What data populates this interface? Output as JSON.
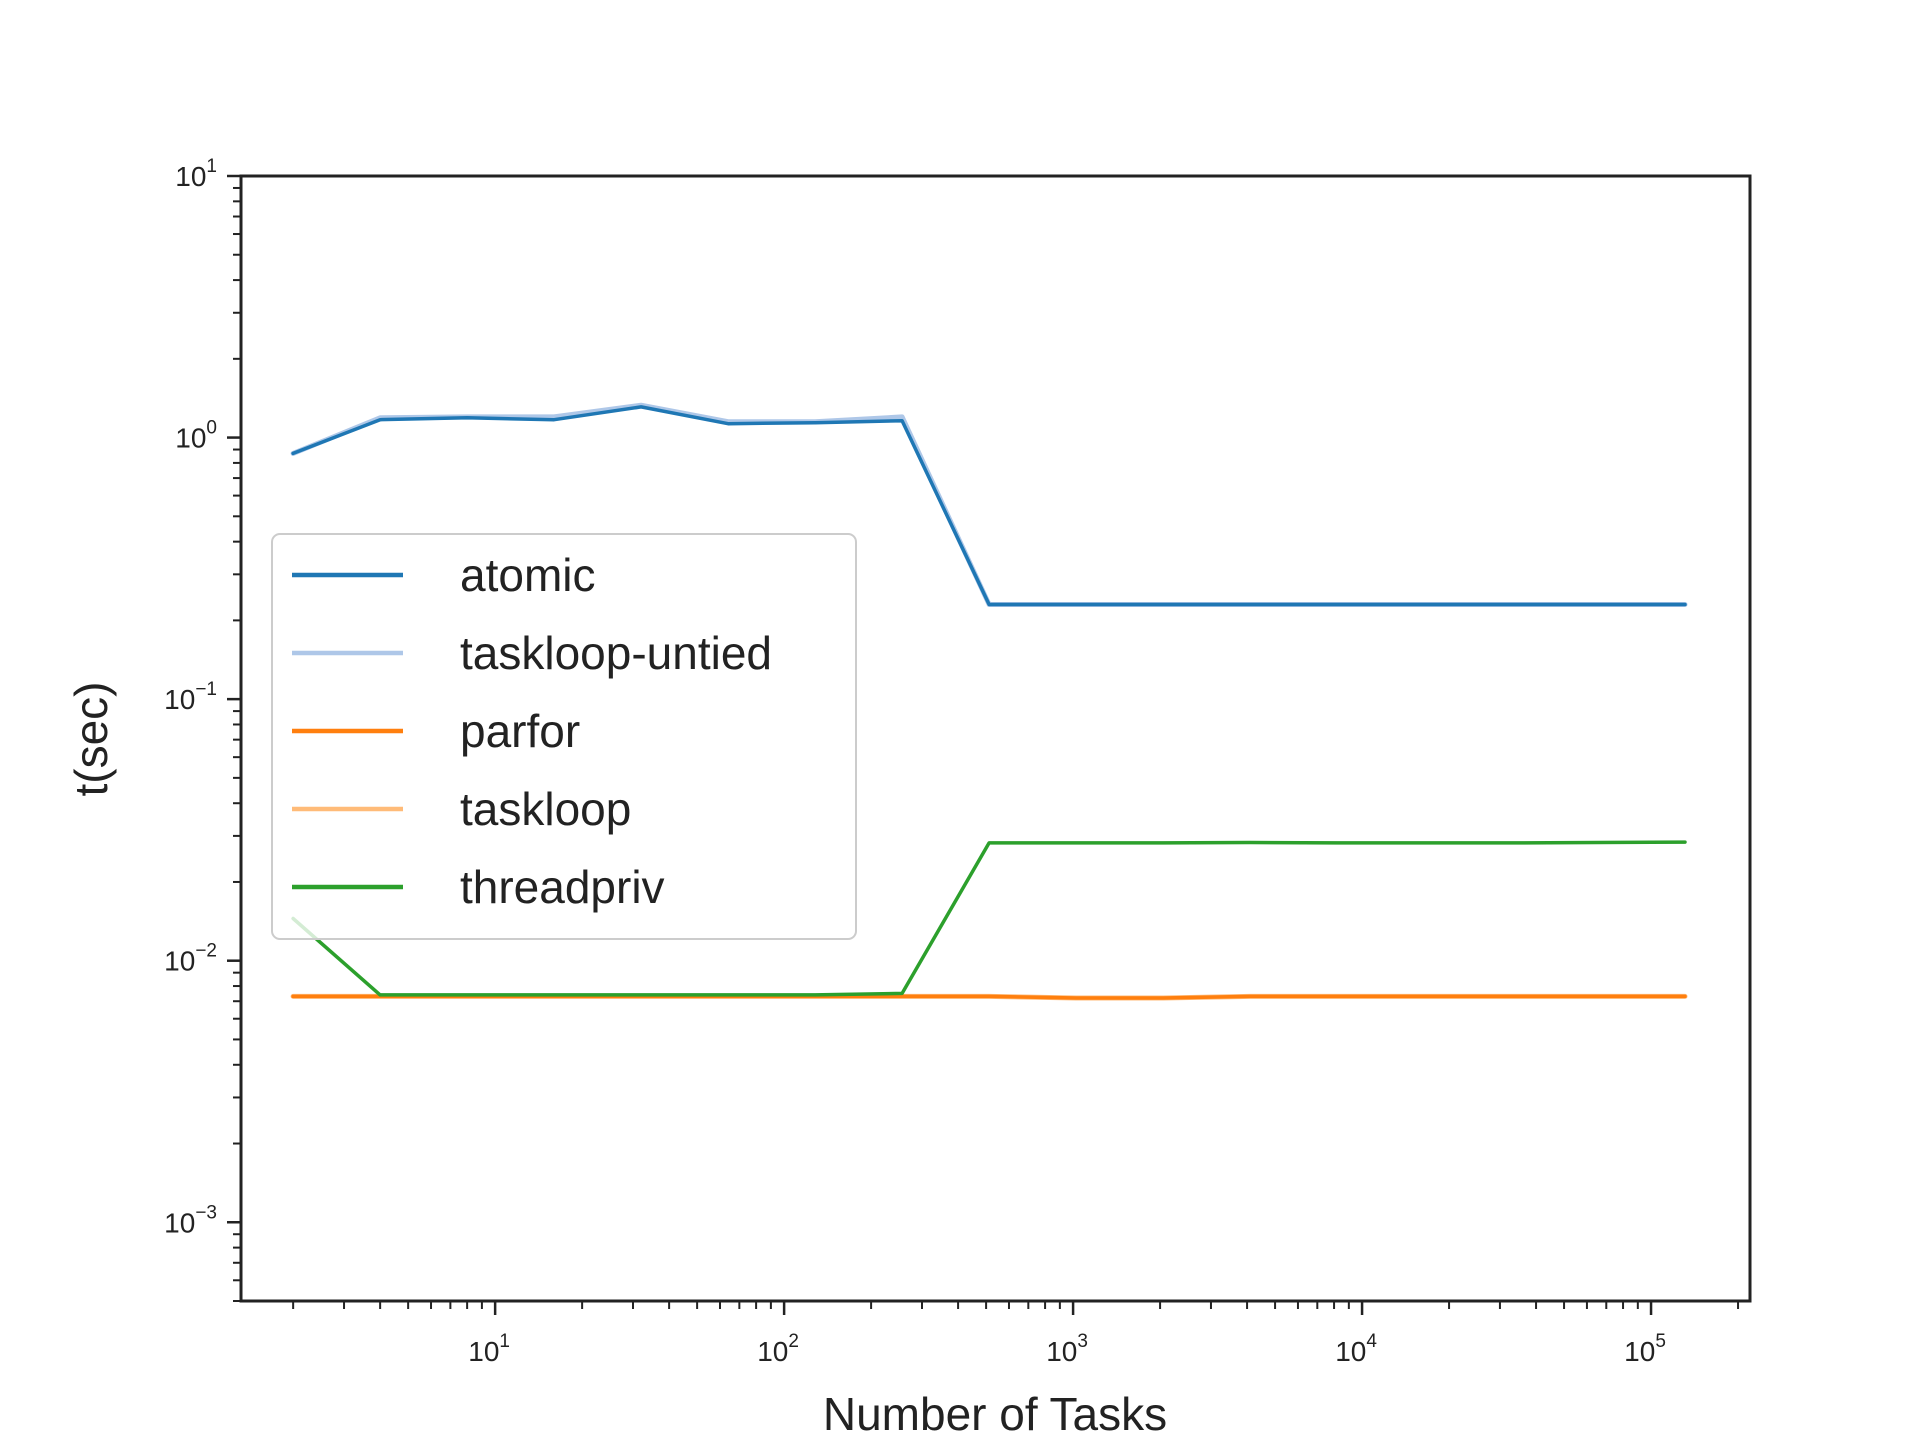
{
  "chart_data": {
    "type": "line",
    "xlabel": "Number of Tasks",
    "ylabel": "t(sec)",
    "xscale": "log",
    "yscale": "log",
    "xlim": [
      1.32,
      220000
    ],
    "ylim": [
      0.0005,
      10
    ],
    "xticks": [
      {
        "value": 10,
        "base": "10",
        "exp": "1"
      },
      {
        "value": 100,
        "base": "10",
        "exp": "2"
      },
      {
        "value": 1000,
        "base": "10",
        "exp": "3"
      },
      {
        "value": 10000,
        "base": "10",
        "exp": "4"
      },
      {
        "value": 100000,
        "base": "10",
        "exp": "5"
      }
    ],
    "yticks": [
      {
        "value": 10,
        "base": "10",
        "exp": "1"
      },
      {
        "value": 1,
        "base": "10",
        "exp": "0"
      },
      {
        "value": 0.1,
        "base": "10",
        "exp": "−1"
      },
      {
        "value": 0.01,
        "base": "10",
        "exp": "−2"
      },
      {
        "value": 0.001,
        "base": "10",
        "exp": "−3"
      }
    ],
    "grid": false,
    "legend_position": "center-left",
    "x": [
      2,
      4,
      8,
      16,
      32,
      64,
      128,
      256,
      512,
      1024,
      2048,
      4096,
      8192,
      16384,
      32768,
      65536,
      131072
    ],
    "series": [
      {
        "name": "atomic",
        "color": "#1f77b4",
        "values": [
          0.87,
          1.17,
          1.19,
          1.17,
          1.31,
          1.13,
          1.14,
          1.16,
          0.23,
          0.23,
          0.23,
          0.23,
          0.23,
          0.23,
          0.23,
          0.23,
          0.23
        ]
      },
      {
        "name": "taskloop-untied",
        "color": "#aec7e8",
        "values": [
          0.87,
          1.19,
          1.2,
          1.2,
          1.33,
          1.15,
          1.15,
          1.2,
          0.23,
          0.23,
          0.23,
          0.23,
          0.23,
          0.23,
          0.23,
          0.23,
          0.23
        ]
      },
      {
        "name": "parfor",
        "color": "#ff7f0e",
        "values": [
          0.0073,
          0.0073,
          0.0073,
          0.0073,
          0.0073,
          0.0073,
          0.0073,
          0.0073,
          0.0073,
          0.0072,
          0.0072,
          0.0073,
          0.0073,
          0.0073,
          0.0073,
          0.0073,
          0.0073
        ]
      },
      {
        "name": "taskloop",
        "color": "#ffbb78",
        "values": [
          0.0073,
          0.0073,
          0.0073,
          0.0073,
          0.0073,
          0.0073,
          0.0073,
          0.0073,
          0.0073,
          0.0072,
          0.0072,
          0.0073,
          0.0073,
          0.0073,
          0.0073,
          0.0073,
          0.0073
        ]
      },
      {
        "name": "threadpriv",
        "color": "#2ca02c",
        "values": [
          0.0145,
          0.0074,
          0.0074,
          0.0074,
          0.0074,
          0.0074,
          0.0074,
          0.0075,
          0.0282,
          0.0282,
          0.0282,
          0.0283,
          0.0282,
          0.0282,
          0.0282,
          0.0283,
          0.0284
        ]
      }
    ]
  }
}
